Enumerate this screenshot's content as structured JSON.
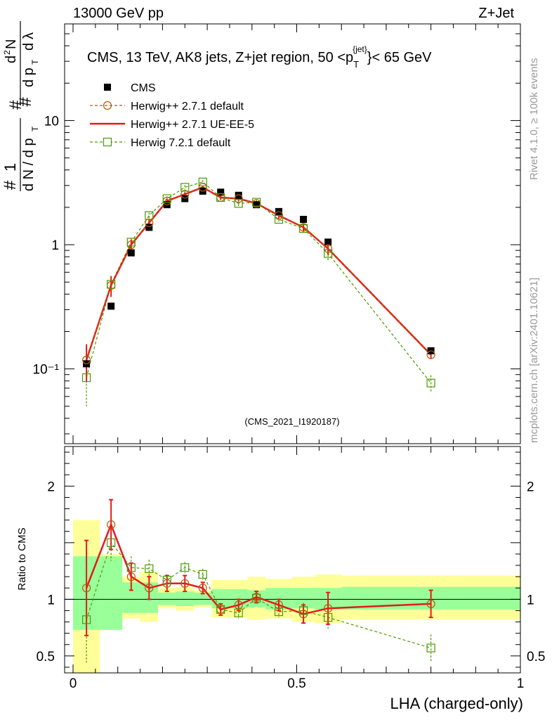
{
  "header": {
    "left": "13000 GeV pp",
    "right": "Z+Jet"
  },
  "side_labels": {
    "rivet": "Rivet 4.1.0, ≥ 100k events",
    "mcplots": "mcplots.cern.ch [arXiv:2401.10621]"
  },
  "chart_data": {
    "type": "scatter",
    "title": "CMS, 13 TeV, AK8 jets, Z+jet region, 50 <p",
    "title_sup": "{jet}",
    "title_sub": "T",
    "title_tail": "}< 65 GeV",
    "xlabel": "LHA (charged-only)",
    "ylabel_main": "1/(dN/dp_T) d²N/(dp_T dλ)",
    "ylabel_ratio": "Ratio to CMS",
    "analysis_id": "(CMS_2021_I1920187)",
    "xlim": [
      0,
      1
    ],
    "ylim_main": [
      0.025,
      60
    ],
    "ylim_ratio": [
      0.35,
      2.35
    ],
    "yscale_main": "log",
    "x_ticks": [
      "0",
      "0.5",
      "1"
    ],
    "y_ticks_main": [
      "10⁻¹",
      "1",
      "10"
    ],
    "y_ticks_ratio": [
      "0.5",
      "1",
      "2"
    ],
    "legend_position": "top-left",
    "x_bin_edges": [
      0,
      0.06,
      0.11,
      0.15,
      0.19,
      0.23,
      0.27,
      0.31,
      0.35,
      0.39,
      0.43,
      0.49,
      0.54,
      0.6,
      1.0
    ],
    "x": [
      0.03,
      0.085,
      0.13,
      0.17,
      0.21,
      0.25,
      0.29,
      0.33,
      0.37,
      0.41,
      0.46,
      0.515,
      0.57,
      0.8
    ],
    "band_inner": [
      [
        0.73,
        1.38
      ],
      [
        0.73,
        1.38
      ],
      [
        0.88,
        1.15
      ],
      [
        0.88,
        1.15
      ],
      [
        0.95,
        1.06
      ],
      [
        0.94,
        1.07
      ],
      [
        0.95,
        1.06
      ],
      [
        0.92,
        1.09
      ],
      [
        0.92,
        1.09
      ],
      [
        0.93,
        1.08
      ],
      [
        0.91,
        1.1
      ],
      [
        0.92,
        1.1
      ],
      [
        0.91,
        1.1
      ],
      [
        0.91,
        1.11
      ]
    ],
    "band_outer": [
      [
        0.0,
        1.7
      ],
      [
        0.75,
        1.4
      ],
      [
        0.83,
        1.2
      ],
      [
        0.8,
        1.24
      ],
      [
        0.92,
        1.1
      ],
      [
        0.9,
        1.11
      ],
      [
        0.93,
        1.08
      ],
      [
        0.84,
        1.17
      ],
      [
        0.84,
        1.17
      ],
      [
        0.82,
        1.2
      ],
      [
        0.83,
        1.18
      ],
      [
        0.8,
        1.2
      ],
      [
        0.79,
        1.22
      ],
      [
        0.82,
        1.21
      ]
    ],
    "series": [
      {
        "name": "CMS",
        "values": [
          0.11,
          0.32,
          0.86,
          1.38,
          2.1,
          2.35,
          2.7,
          2.65,
          2.5,
          2.1,
          1.85,
          1.6,
          1.05,
          0.14
        ]
      },
      {
        "name": "Herwig++ 2.7.1 default",
        "values": [
          0.118,
          0.47,
          1.0,
          1.5,
          2.25,
          2.55,
          2.9,
          2.4,
          2.35,
          2.15,
          1.72,
          1.38,
          0.93,
          0.13
        ],
        "errors": [
          0.04,
          0.09,
          0.1,
          0.1,
          0.1,
          0.1,
          0.1,
          0.1,
          0.1,
          0.1,
          0.1,
          0.1,
          0.1,
          0.01
        ],
        "ratio": [
          1.1,
          1.66,
          1.2,
          1.1,
          1.14,
          1.14,
          1.1,
          0.91,
          0.95,
          1.02,
          0.95,
          0.87,
          0.92,
          0.96
        ],
        "ratio_errors": [
          0.42,
          0.22,
          0.12,
          0.1,
          0.07,
          0.07,
          0.05,
          0.05,
          0.05,
          0.05,
          0.05,
          0.08,
          0.14,
          0.12
        ],
        "color": "#b35c00"
      },
      {
        "name": "Herwig++ 2.7.1 UE-EE-5",
        "values": [
          0.118,
          0.47,
          1.0,
          1.5,
          2.25,
          2.55,
          2.9,
          2.4,
          2.35,
          2.15,
          1.72,
          1.38,
          0.93,
          0.13
        ],
        "color": "#e41a1c"
      },
      {
        "name": "Herwig 7.2.1 default",
        "values": [
          0.085,
          0.48,
          1.05,
          1.72,
          2.35,
          2.9,
          3.2,
          2.4,
          2.15,
          2.2,
          1.6,
          1.35,
          0.85,
          0.077
        ],
        "errors": [
          0.035,
          0.06,
          0.08,
          0.1,
          0.1,
          0.12,
          0.12,
          0.12,
          0.12,
          0.1,
          0.1,
          0.1,
          0.1,
          0.012
        ],
        "ratio": [
          0.82,
          1.5,
          1.28,
          1.27,
          1.17,
          1.28,
          1.22,
          0.91,
          0.88,
          1.01,
          0.89,
          0.9,
          0.84,
          0.57
        ],
        "ratio_errors": [
          0.38,
          0.16,
          0.1,
          0.08,
          0.05,
          0.05,
          0.05,
          0.05,
          0.05,
          0.05,
          0.05,
          0.07,
          0.1,
          0.12
        ],
        "color": "#4c9a00"
      }
    ],
    "colors": {
      "data": "#000000",
      "band_inner": "#99ff99",
      "band_outer": "#ffff99",
      "default": "#b35c00",
      "ueee5": "#e41a1c",
      "h7": "#4c9a00",
      "watermark": "#999999"
    }
  }
}
